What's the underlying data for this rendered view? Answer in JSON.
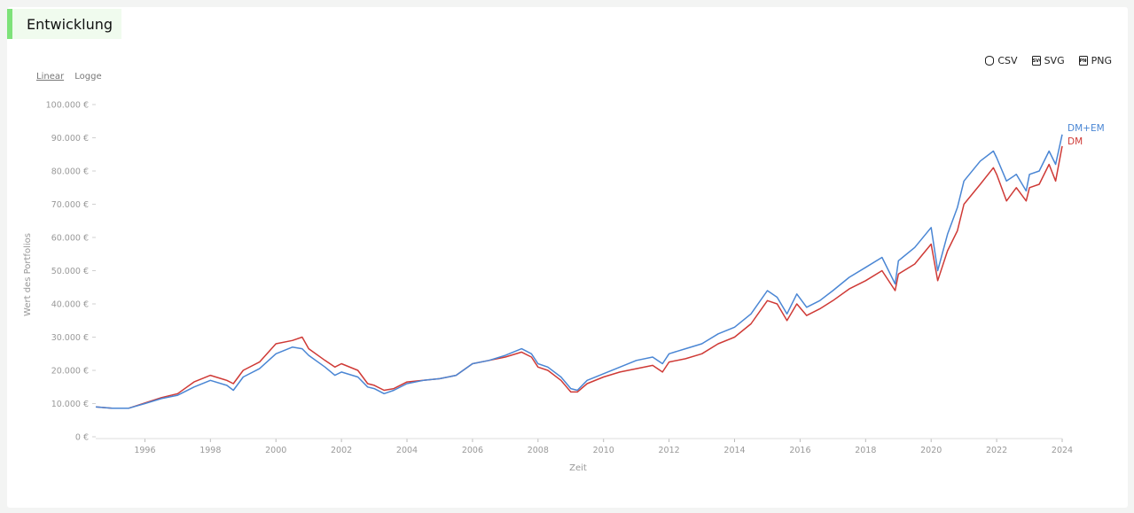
{
  "header": {
    "title": "Entwicklung"
  },
  "scale": {
    "linear": "Linear",
    "log": "Logge"
  },
  "exports": [
    {
      "label": "CSV",
      "icon": "database-download-icon"
    },
    {
      "label": "SVG",
      "icon": "svg-file-icon"
    },
    {
      "label": "PNG",
      "icon": "png-file-icon"
    }
  ],
  "colors": {
    "dmem": "#4a86d4",
    "dm": "#cf3a36",
    "accent": "#7ee27a"
  },
  "chart_data": {
    "type": "line",
    "xlabel": "Zeit",
    "ylabel": "Wert des Portfolios",
    "xlim": [
      1994.5,
      2024.0
    ],
    "ylim": [
      0,
      100000
    ],
    "x_ticks": [
      1996,
      1998,
      2000,
      2002,
      2004,
      2006,
      2008,
      2010,
      2012,
      2014,
      2016,
      2018,
      2020,
      2022,
      2024
    ],
    "y_ticks": [
      {
        "value": 0,
        "label": "0 €"
      },
      {
        "value": 10000,
        "label": "10.000 €"
      },
      {
        "value": 20000,
        "label": "20.000 €"
      },
      {
        "value": 30000,
        "label": "30.000 €"
      },
      {
        "value": 40000,
        "label": "40.000 €"
      },
      {
        "value": 50000,
        "label": "50.000 €"
      },
      {
        "value": 60000,
        "label": "60.000 €"
      },
      {
        "value": 70000,
        "label": "70.000 €"
      },
      {
        "value": 80000,
        "label": "80.000 €"
      },
      {
        "value": 90000,
        "label": "90.000 €"
      },
      {
        "value": 100000,
        "label": "100.000 €"
      }
    ],
    "x": [
      1994.5,
      1995.0,
      1995.5,
      1996.0,
      1996.5,
      1997.0,
      1997.5,
      1998.0,
      1998.5,
      1998.7,
      1999.0,
      1999.5,
      2000.0,
      2000.5,
      2000.8,
      2001.0,
      2001.5,
      2001.8,
      2002.0,
      2002.5,
      2002.8,
      2003.0,
      2003.3,
      2003.6,
      2004.0,
      2004.5,
      2005.0,
      2005.5,
      2006.0,
      2006.5,
      2007.0,
      2007.5,
      2007.8,
      2008.0,
      2008.3,
      2008.7,
      2009.0,
      2009.2,
      2009.5,
      2010.0,
      2010.5,
      2011.0,
      2011.5,
      2011.8,
      2012.0,
      2012.5,
      2013.0,
      2013.5,
      2014.0,
      2014.5,
      2015.0,
      2015.3,
      2015.6,
      2015.9,
      2016.2,
      2016.6,
      2017.0,
      2017.5,
      2018.0,
      2018.5,
      2018.9,
      2019.0,
      2019.5,
      2020.0,
      2020.2,
      2020.5,
      2020.8,
      2021.0,
      2021.5,
      2021.9,
      2022.0,
      2022.3,
      2022.6,
      2022.9,
      2023.0,
      2023.3,
      2023.6,
      2023.8,
      2024.0
    ],
    "series": [
      {
        "name": "DM+EM",
        "values": [
          9000,
          8600,
          8600,
          10000,
          11500,
          12500,
          15000,
          17000,
          15500,
          14000,
          18000,
          20500,
          25000,
          27000,
          26500,
          24500,
          21000,
          18500,
          19500,
          18000,
          15000,
          14500,
          13000,
          14000,
          16000,
          17000,
          17500,
          18500,
          22000,
          23000,
          24500,
          26500,
          25000,
          22000,
          21000,
          18000,
          14500,
          14000,
          17000,
          19000,
          21000,
          23000,
          24000,
          22000,
          25000,
          26500,
          28000,
          31000,
          33000,
          37000,
          44000,
          42000,
          37000,
          43000,
          39000,
          41000,
          44000,
          48000,
          51000,
          54000,
          46000,
          53000,
          57000,
          63000,
          50000,
          61000,
          69000,
          77000,
          83000,
          86000,
          84000,
          77000,
          79000,
          74000,
          79000,
          80000,
          86000,
          82000,
          91000
        ]
      },
      {
        "name": "DM",
        "values": [
          9000,
          8600,
          8600,
          10200,
          11800,
          13000,
          16500,
          18500,
          17000,
          16000,
          20000,
          22500,
          28000,
          29000,
          30000,
          26500,
          23000,
          21000,
          22000,
          20000,
          16000,
          15500,
          14000,
          14500,
          16500,
          17000,
          17500,
          18500,
          22000,
          23000,
          24000,
          25500,
          24000,
          21000,
          20000,
          17000,
          13500,
          13500,
          16000,
          18000,
          19500,
          20500,
          21500,
          19500,
          22500,
          23500,
          25000,
          28000,
          30000,
          34000,
          41000,
          40000,
          35000,
          40000,
          36500,
          38500,
          41000,
          44500,
          47000,
          50000,
          44000,
          49000,
          52000,
          58000,
          47000,
          56000,
          62000,
          70000,
          76000,
          81000,
          79000,
          71000,
          75000,
          71000,
          75000,
          76000,
          82000,
          77000,
          87500
        ]
      }
    ],
    "legend_position": "right-end"
  }
}
